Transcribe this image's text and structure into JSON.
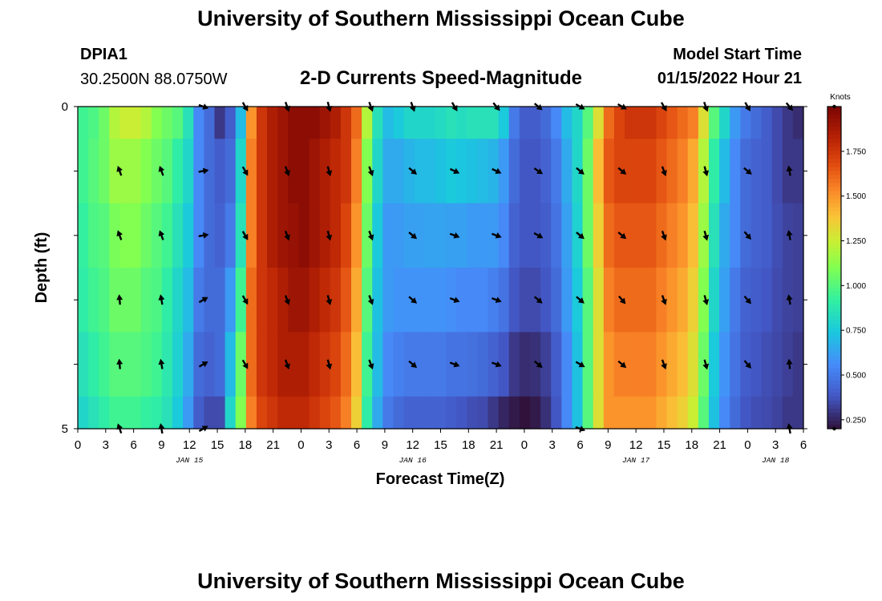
{
  "header": {
    "title": "University of Southern Mississippi Ocean Cube",
    "station_id": "DPIA1",
    "station_coords": "30.2500N  88.0750W",
    "subtitle": "2-D Currents Speed-Magnitude",
    "model_start_label": "Model Start Time",
    "model_start_value": "01/15/2022 Hour 21"
  },
  "footer": {
    "title": "University of Southern Mississippi Ocean Cube"
  },
  "chart_data": {
    "type": "heatmap",
    "title": "2-D Currents Speed-Magnitude",
    "xlabel": "Forecast Time(Z)",
    "ylabel": "Depth (ft)",
    "colorbar_label": "Knots",
    "x_tick_labels": [
      "0",
      "3",
      "6",
      "9",
      "12",
      "15",
      "18",
      "21",
      "0",
      "3",
      "6",
      "9",
      "12",
      "15",
      "18",
      "21",
      "0",
      "3",
      "6",
      "9",
      "12",
      "15",
      "18",
      "21",
      "0",
      "3",
      "6"
    ],
    "day_labels": [
      {
        "label": "JAN 15",
        "hour_index": 12
      },
      {
        "label": "JAN 16",
        "hour_index": 36
      },
      {
        "label": "JAN 17",
        "hour_index": 60
      },
      {
        "label": "JAN 18",
        "hour_index": 75
      }
    ],
    "y_tick_labels": [
      {
        "label": "0",
        "depth": 0
      },
      {
        "label": "5",
        "depth": 5
      }
    ],
    "x_range_hours": [
      0,
      78
    ],
    "depth_range_ft": [
      0,
      5
    ],
    "colorbar_range": [
      0.2,
      2.0
    ],
    "colorbar_ticks": [
      0.25,
      0.5,
      0.75,
      1.0,
      1.25,
      1.5,
      1.75
    ],
    "colorbar_tick_labels": [
      "0.250",
      "0.500",
      "0.750",
      "1.000",
      "1.250",
      "1.500",
      "1.750"
    ],
    "depth_layers": [
      0,
      1,
      2,
      3,
      4,
      5
    ],
    "speed_knots_by_layer": [
      [
        0.95,
        0.98,
        1.05,
        1.2,
        1.25,
        1.25,
        1.2,
        1.1,
        1.05,
        1.0,
        0.85,
        0.55,
        0.45,
        0.3,
        0.4,
        0.7,
        1.5,
        1.75,
        1.85,
        1.9,
        1.95,
        1.95,
        1.95,
        1.9,
        1.85,
        1.75,
        1.6,
        1.2,
        0.85,
        0.7,
        0.75,
        0.8,
        0.8,
        0.8,
        0.82,
        0.85,
        0.83,
        0.85,
        0.85,
        0.85,
        0.75,
        0.5,
        0.4,
        0.4,
        0.45,
        0.55,
        0.7,
        0.8,
        1.0,
        1.3,
        1.6,
        1.7,
        1.75,
        1.75,
        1.75,
        1.7,
        1.65,
        1.6,
        1.55,
        1.3,
        1.0,
        0.8,
        0.6,
        0.5,
        0.45,
        0.4,
        0.35,
        0.3,
        0.27
      ],
      [
        0.95,
        1.0,
        1.05,
        1.15,
        1.15,
        1.15,
        1.1,
        1.05,
        1.0,
        0.9,
        0.8,
        0.55,
        0.45,
        0.4,
        0.45,
        0.8,
        1.55,
        1.75,
        1.85,
        1.9,
        1.95,
        1.95,
        1.9,
        1.85,
        1.8,
        1.75,
        1.55,
        1.1,
        0.8,
        0.65,
        0.65,
        0.68,
        0.7,
        0.7,
        0.72,
        0.75,
        0.73,
        0.72,
        0.7,
        0.68,
        0.6,
        0.45,
        0.38,
        0.38,
        0.42,
        0.5,
        0.65,
        0.8,
        1.05,
        1.4,
        1.65,
        1.7,
        1.7,
        1.7,
        1.7,
        1.65,
        1.6,
        1.55,
        1.45,
        1.2,
        0.9,
        0.7,
        0.55,
        0.45,
        0.42,
        0.4,
        0.35,
        0.3,
        0.3
      ],
      [
        0.92,
        0.98,
        1.0,
        1.08,
        1.1,
        1.1,
        1.05,
        1.0,
        0.95,
        0.85,
        0.75,
        0.55,
        0.45,
        0.42,
        0.5,
        0.85,
        1.55,
        1.75,
        1.85,
        1.9,
        1.92,
        1.95,
        1.9,
        1.85,
        1.8,
        1.7,
        1.5,
        1.05,
        0.75,
        0.6,
        0.6,
        0.62,
        0.62,
        0.63,
        0.63,
        0.62,
        0.62,
        0.6,
        0.6,
        0.6,
        0.55,
        0.42,
        0.38,
        0.38,
        0.4,
        0.48,
        0.62,
        0.78,
        1.05,
        1.35,
        1.6,
        1.65,
        1.65,
        1.65,
        1.65,
        1.6,
        1.55,
        1.5,
        1.4,
        1.15,
        0.85,
        0.65,
        0.55,
        0.45,
        0.42,
        0.4,
        0.36,
        0.33,
        0.32
      ],
      [
        0.9,
        0.95,
        0.98,
        1.05,
        1.05,
        1.05,
        1.0,
        0.98,
        0.9,
        0.8,
        0.7,
        0.5,
        0.45,
        0.45,
        0.6,
        0.95,
        1.6,
        1.75,
        1.8,
        1.85,
        1.9,
        1.9,
        1.85,
        1.8,
        1.75,
        1.65,
        1.45,
        1.0,
        0.72,
        0.6,
        0.58,
        0.58,
        0.58,
        0.58,
        0.58,
        0.57,
        0.55,
        0.55,
        0.55,
        0.52,
        0.48,
        0.38,
        0.35,
        0.35,
        0.38,
        0.45,
        0.6,
        0.75,
        1.0,
        1.3,
        1.55,
        1.6,
        1.6,
        1.6,
        1.6,
        1.55,
        1.5,
        1.45,
        1.35,
        1.1,
        0.8,
        0.62,
        0.5,
        0.42,
        0.4,
        0.38,
        0.35,
        0.33,
        0.32
      ],
      [
        0.85,
        0.9,
        0.95,
        1.0,
        1.0,
        1.0,
        0.98,
        0.95,
        0.88,
        0.78,
        0.65,
        0.45,
        0.42,
        0.45,
        0.7,
        1.05,
        1.6,
        1.75,
        1.8,
        1.85,
        1.85,
        1.85,
        1.8,
        1.75,
        1.7,
        1.6,
        1.4,
        0.95,
        0.7,
        0.55,
        0.52,
        0.5,
        0.5,
        0.5,
        0.5,
        0.48,
        0.48,
        0.47,
        0.45,
        0.42,
        0.38,
        0.3,
        0.27,
        0.28,
        0.32,
        0.4,
        0.55,
        0.72,
        1.0,
        1.3,
        1.5,
        1.55,
        1.55,
        1.55,
        1.55,
        1.5,
        1.45,
        1.4,
        1.3,
        1.05,
        0.75,
        0.58,
        0.48,
        0.4,
        0.38,
        0.36,
        0.34,
        0.32,
        0.3
      ],
      [
        0.8,
        0.85,
        0.9,
        0.95,
        0.95,
        0.95,
        0.92,
        0.9,
        0.85,
        0.75,
        0.6,
        0.4,
        0.35,
        0.35,
        0.8,
        1.1,
        1.55,
        1.7,
        1.75,
        1.8,
        1.8,
        1.8,
        1.75,
        1.7,
        1.65,
        1.55,
        1.35,
        0.9,
        0.65,
        0.5,
        0.45,
        0.42,
        0.42,
        0.42,
        0.42,
        0.4,
        0.38,
        0.36,
        0.35,
        0.3,
        0.25,
        0.22,
        0.2,
        0.22,
        0.28,
        0.38,
        0.55,
        0.72,
        1.0,
        1.3,
        1.5,
        1.5,
        1.5,
        1.5,
        1.5,
        1.45,
        1.4,
        1.35,
        1.25,
        1.0,
        0.72,
        0.55,
        0.45,
        0.38,
        0.36,
        0.35,
        0.33,
        0.3,
        0.3
      ]
    ],
    "vector_hours": [
      4.5,
      9,
      13.5,
      18,
      22.5,
      27,
      31.5,
      36,
      40.5,
      45,
      49.5,
      54,
      58.5,
      63,
      67.5,
      72,
      76.5
    ],
    "vector_direction_deg_by_depth": [
      {
        "depth": 0,
        "directions": [
          null,
          null,
          110,
          150,
          160,
          165,
          160,
          160,
          150,
          140,
          130,
          120,
          120,
          150,
          160,
          150,
          140
        ]
      },
      {
        "depth": 1,
        "directions": [
          340,
          340,
          80,
          150,
          160,
          165,
          160,
          130,
          115,
          115,
          125,
          130,
          130,
          160,
          165,
          130,
          350
        ]
      },
      {
        "depth": 2,
        "directions": [
          340,
          340,
          80,
          150,
          160,
          165,
          160,
          130,
          110,
          110,
          120,
          130,
          130,
          160,
          165,
          140,
          350
        ]
      },
      {
        "depth": 3,
        "directions": [
          355,
          350,
          60,
          150,
          160,
          165,
          160,
          130,
          110,
          110,
          130,
          130,
          140,
          160,
          165,
          140,
          350
        ]
      },
      {
        "depth": 4,
        "directions": [
          355,
          350,
          60,
          150,
          160,
          165,
          160,
          130,
          110,
          110,
          130,
          120,
          130,
          160,
          165,
          140,
          355
        ]
      },
      {
        "depth": 5,
        "directions": [
          340,
          350,
          60,
          null,
          null,
          null,
          null,
          null,
          null,
          null,
          null,
          110,
          null,
          null,
          null,
          null,
          350
        ]
      }
    ]
  }
}
